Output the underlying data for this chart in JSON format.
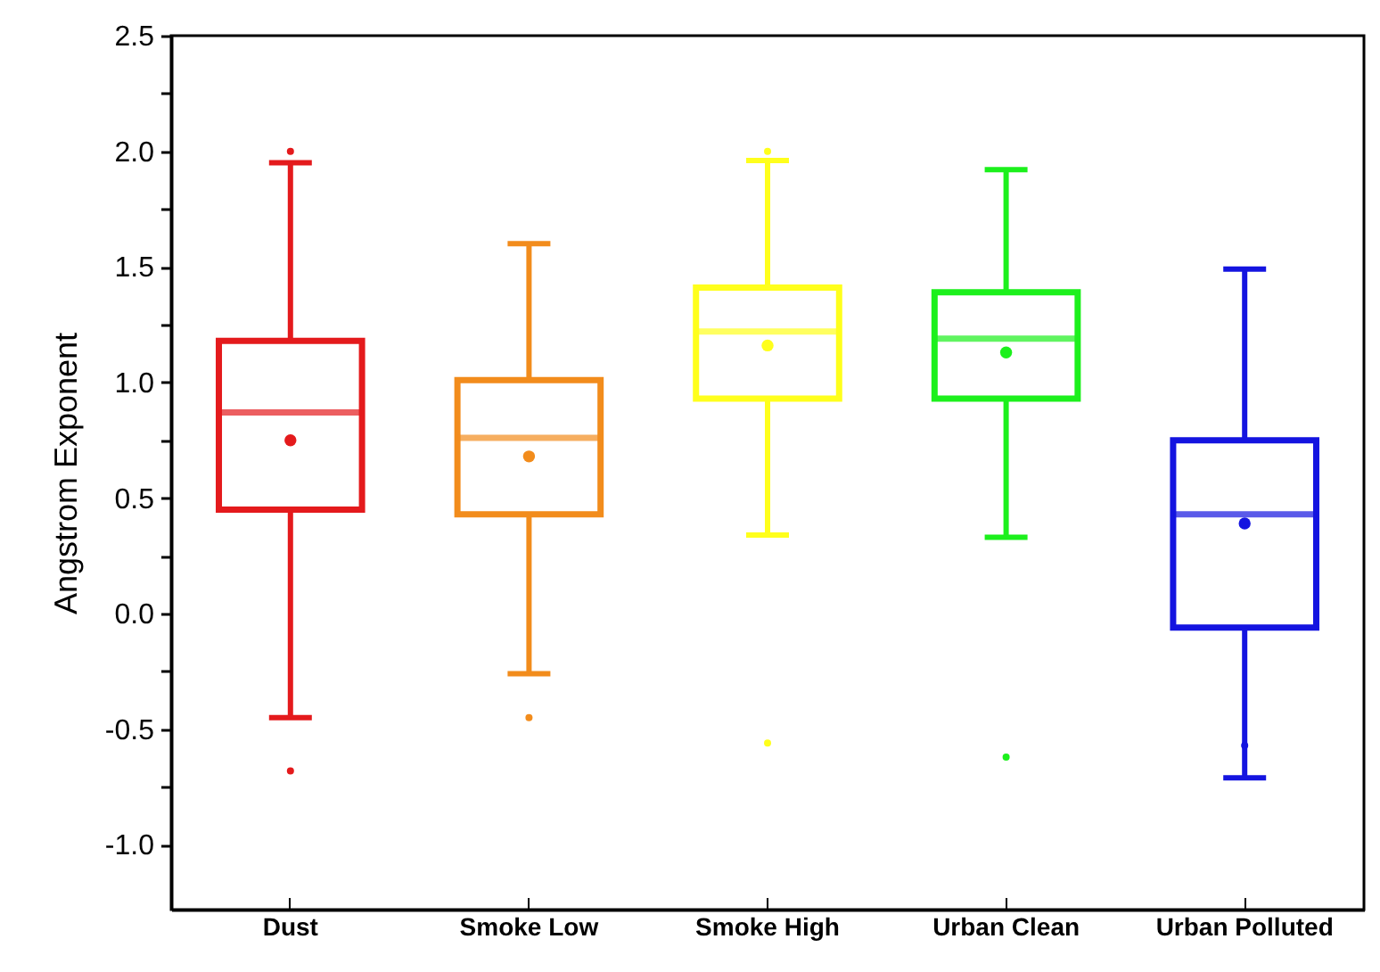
{
  "chart_data": {
    "type": "box",
    "ylabel": "Angstrom Exponent",
    "categories": [
      "Dust",
      "Smoke Low",
      "Smoke High",
      "Urban Clean",
      "Urban Polluted"
    ],
    "colors": [
      "#e41a1c",
      "#f28c1c",
      "#ffff1c",
      "#1cf01c",
      "#1414e0"
    ],
    "boxes": [
      {
        "low": -0.45,
        "q1": 0.45,
        "median": 0.87,
        "q3": 1.18,
        "high": 1.95,
        "mean": 0.75,
        "outliers": [
          2.0,
          -0.68
        ]
      },
      {
        "low": -0.26,
        "q1": 0.43,
        "median": 0.76,
        "q3": 1.01,
        "high": 1.6,
        "mean": 0.68,
        "outliers": [
          -0.45
        ]
      },
      {
        "low": 0.34,
        "q1": 0.93,
        "median": 1.22,
        "q3": 1.41,
        "high": 1.96,
        "mean": 1.16,
        "outliers": [
          2.0,
          -0.56
        ]
      },
      {
        "low": 0.33,
        "q1": 0.93,
        "median": 1.19,
        "q3": 1.39,
        "high": 1.92,
        "mean": 1.13,
        "outliers": [
          -0.62
        ]
      },
      {
        "low": -0.71,
        "q1": -0.06,
        "median": 0.43,
        "q3": 0.75,
        "high": 1.49,
        "mean": 0.39,
        "outliers": [
          -0.57
        ]
      }
    ],
    "ylim": [
      -1.28,
      2.5
    ],
    "yticks": [
      {
        "value": -1,
        "label": "-1.0"
      },
      {
        "value": -0.75,
        "label": null
      },
      {
        "value": -0.5,
        "label": "-0.5"
      },
      {
        "value": -0.25,
        "label": null
      },
      {
        "value": 0,
        "label": "0.0"
      },
      {
        "value": 0.25,
        "label": null
      },
      {
        "value": 0.5,
        "label": "0.5"
      },
      {
        "value": 0.75,
        "label": null
      },
      {
        "value": 1,
        "label": "1.0"
      },
      {
        "value": 1.25,
        "label": null
      },
      {
        "value": 1.5,
        "label": "1.5"
      },
      {
        "value": 1.75,
        "label": null
      },
      {
        "value": 2,
        "label": "2.0"
      },
      {
        "value": 2.25,
        "label": null
      },
      {
        "value": 2.5,
        "label": "2.5"
      }
    ],
    "marker": "circle"
  }
}
